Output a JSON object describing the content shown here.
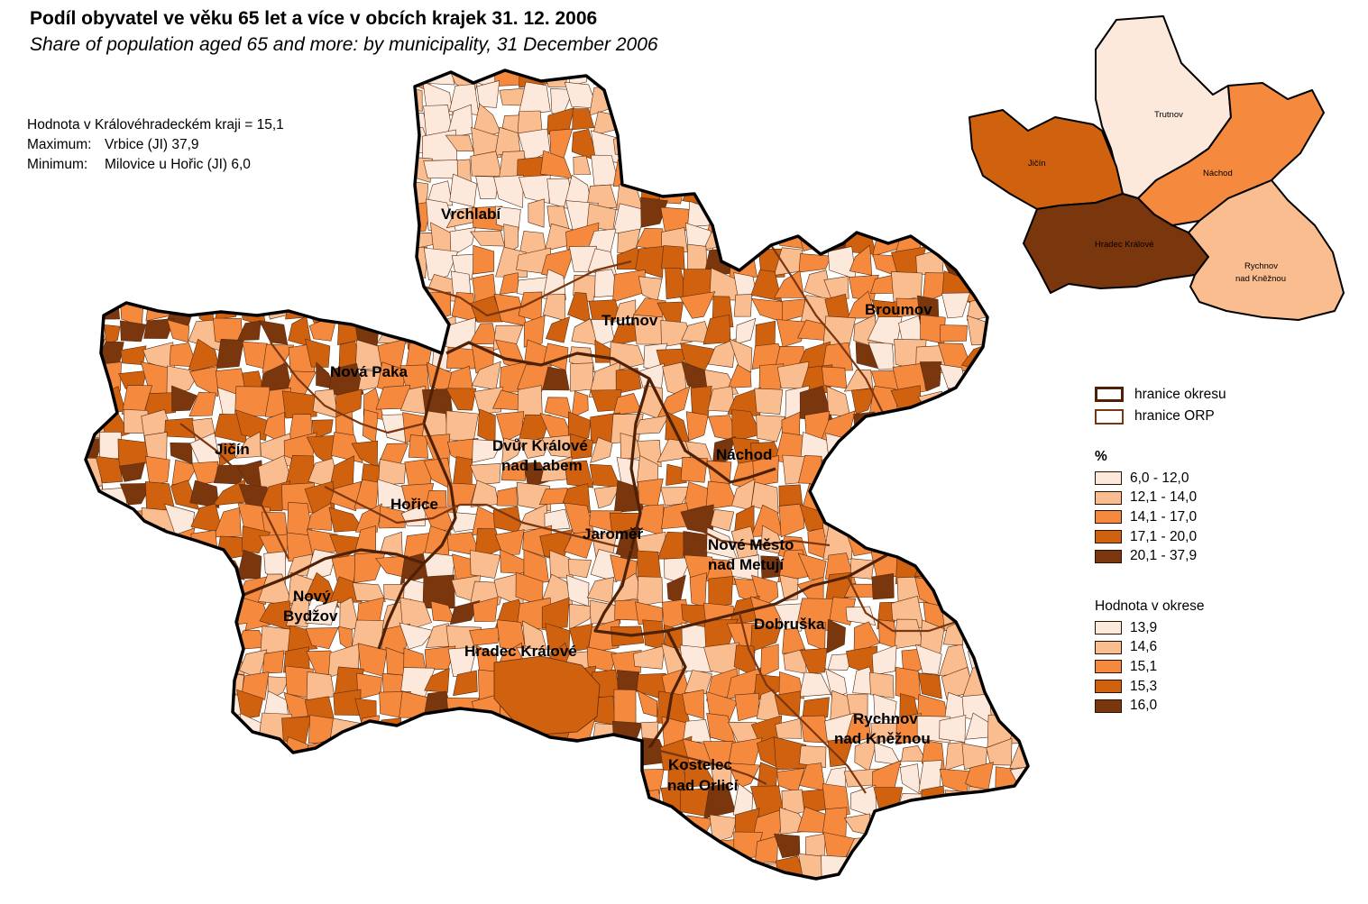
{
  "title": "Podíl obyvatel ve věku 65 let a více v obcích krajek 31. 12. 2006",
  "subtitle": "Share of population aged 65 and more: by municipality, 31 December 2006",
  "stats": {
    "region_value_label": "Hodnota v Královéhradeckém kraji = 15,1",
    "maximum_label": "Maximum:",
    "maximum_value": "Vrbice (JI) 37,9",
    "minimum_label": "Minimum:",
    "minimum_value": "Milovice u Hořic (JI) 6,0"
  },
  "colors": {
    "class1": "#fde8dc",
    "class2": "#f9bd8f",
    "class3": "#f58a3e",
    "class4": "#d0620f",
    "class5": "#7a360d",
    "border_okres": "#4e2105",
    "border_orp": "#7a3610"
  },
  "boundary_legend": {
    "okres": "hranice  okresu",
    "orp": "hranice ORP"
  },
  "legend_percent": {
    "title": "%",
    "classes": [
      {
        "label": "6,0 - 12,0",
        "color": "#fde8dc"
      },
      {
        "label": "12,1 - 14,0",
        "color": "#f9bd8f"
      },
      {
        "label": "14,1 - 17,0",
        "color": "#f58a3e"
      },
      {
        "label": "17,1 - 20,0",
        "color": "#d0620f"
      },
      {
        "label": "20,1 - 37,9",
        "color": "#7a360d"
      }
    ]
  },
  "legend_district": {
    "title": "Hodnota v okrese",
    "classes": [
      {
        "label": "13,9",
        "color": "#fde8dc"
      },
      {
        "label": "14,6",
        "color": "#f9bd8f"
      },
      {
        "label": "15,1",
        "color": "#f58a3e"
      },
      {
        "label": "15,3",
        "color": "#d0620f"
      },
      {
        "label": "16,0",
        "color": "#7a360d"
      }
    ]
  },
  "map_labels": {
    "vrchlabi": "Vrchlabí",
    "trutnov": "Trutnov",
    "broumov": "Broumov",
    "nova_paka": "Nová Paka",
    "jicin": "Jičín",
    "dvur_line1": "Dvůr Králové",
    "dvur_line2": "nad Labem",
    "nachod": "Náchod",
    "horice": "Hořice",
    "jaromer": "Jaroměř",
    "nove_mesto_line1": "Nové Město",
    "nove_mesto_line2": "nad Metují",
    "novy_bydzov_line1": "Nový",
    "novy_bydzov_line2": "Bydžov",
    "dobruska": "Dobruška",
    "hradec_kralove": "Hradec Králové",
    "rychnov_line1": "Rychnov",
    "rychnov_line2": "nad Kněžnou",
    "kostelec_line1": "Kostelec",
    "kostelec_line2": "nad Orlicí"
  },
  "inset": {
    "trutnov": "Trutnov",
    "jicin": "Jičín",
    "nachod": "Náchod",
    "hradec_kralove": "Hradec Králové",
    "rychnov_line1": "Rychnov",
    "rychnov_line2": "nad Kněžnou",
    "district_values": {
      "trutnov": 13.9,
      "jicin": 15.3,
      "nachod": 15.1,
      "hradec_kralove": 16.0,
      "rychnov_nad_kneznou": 14.6
    }
  }
}
